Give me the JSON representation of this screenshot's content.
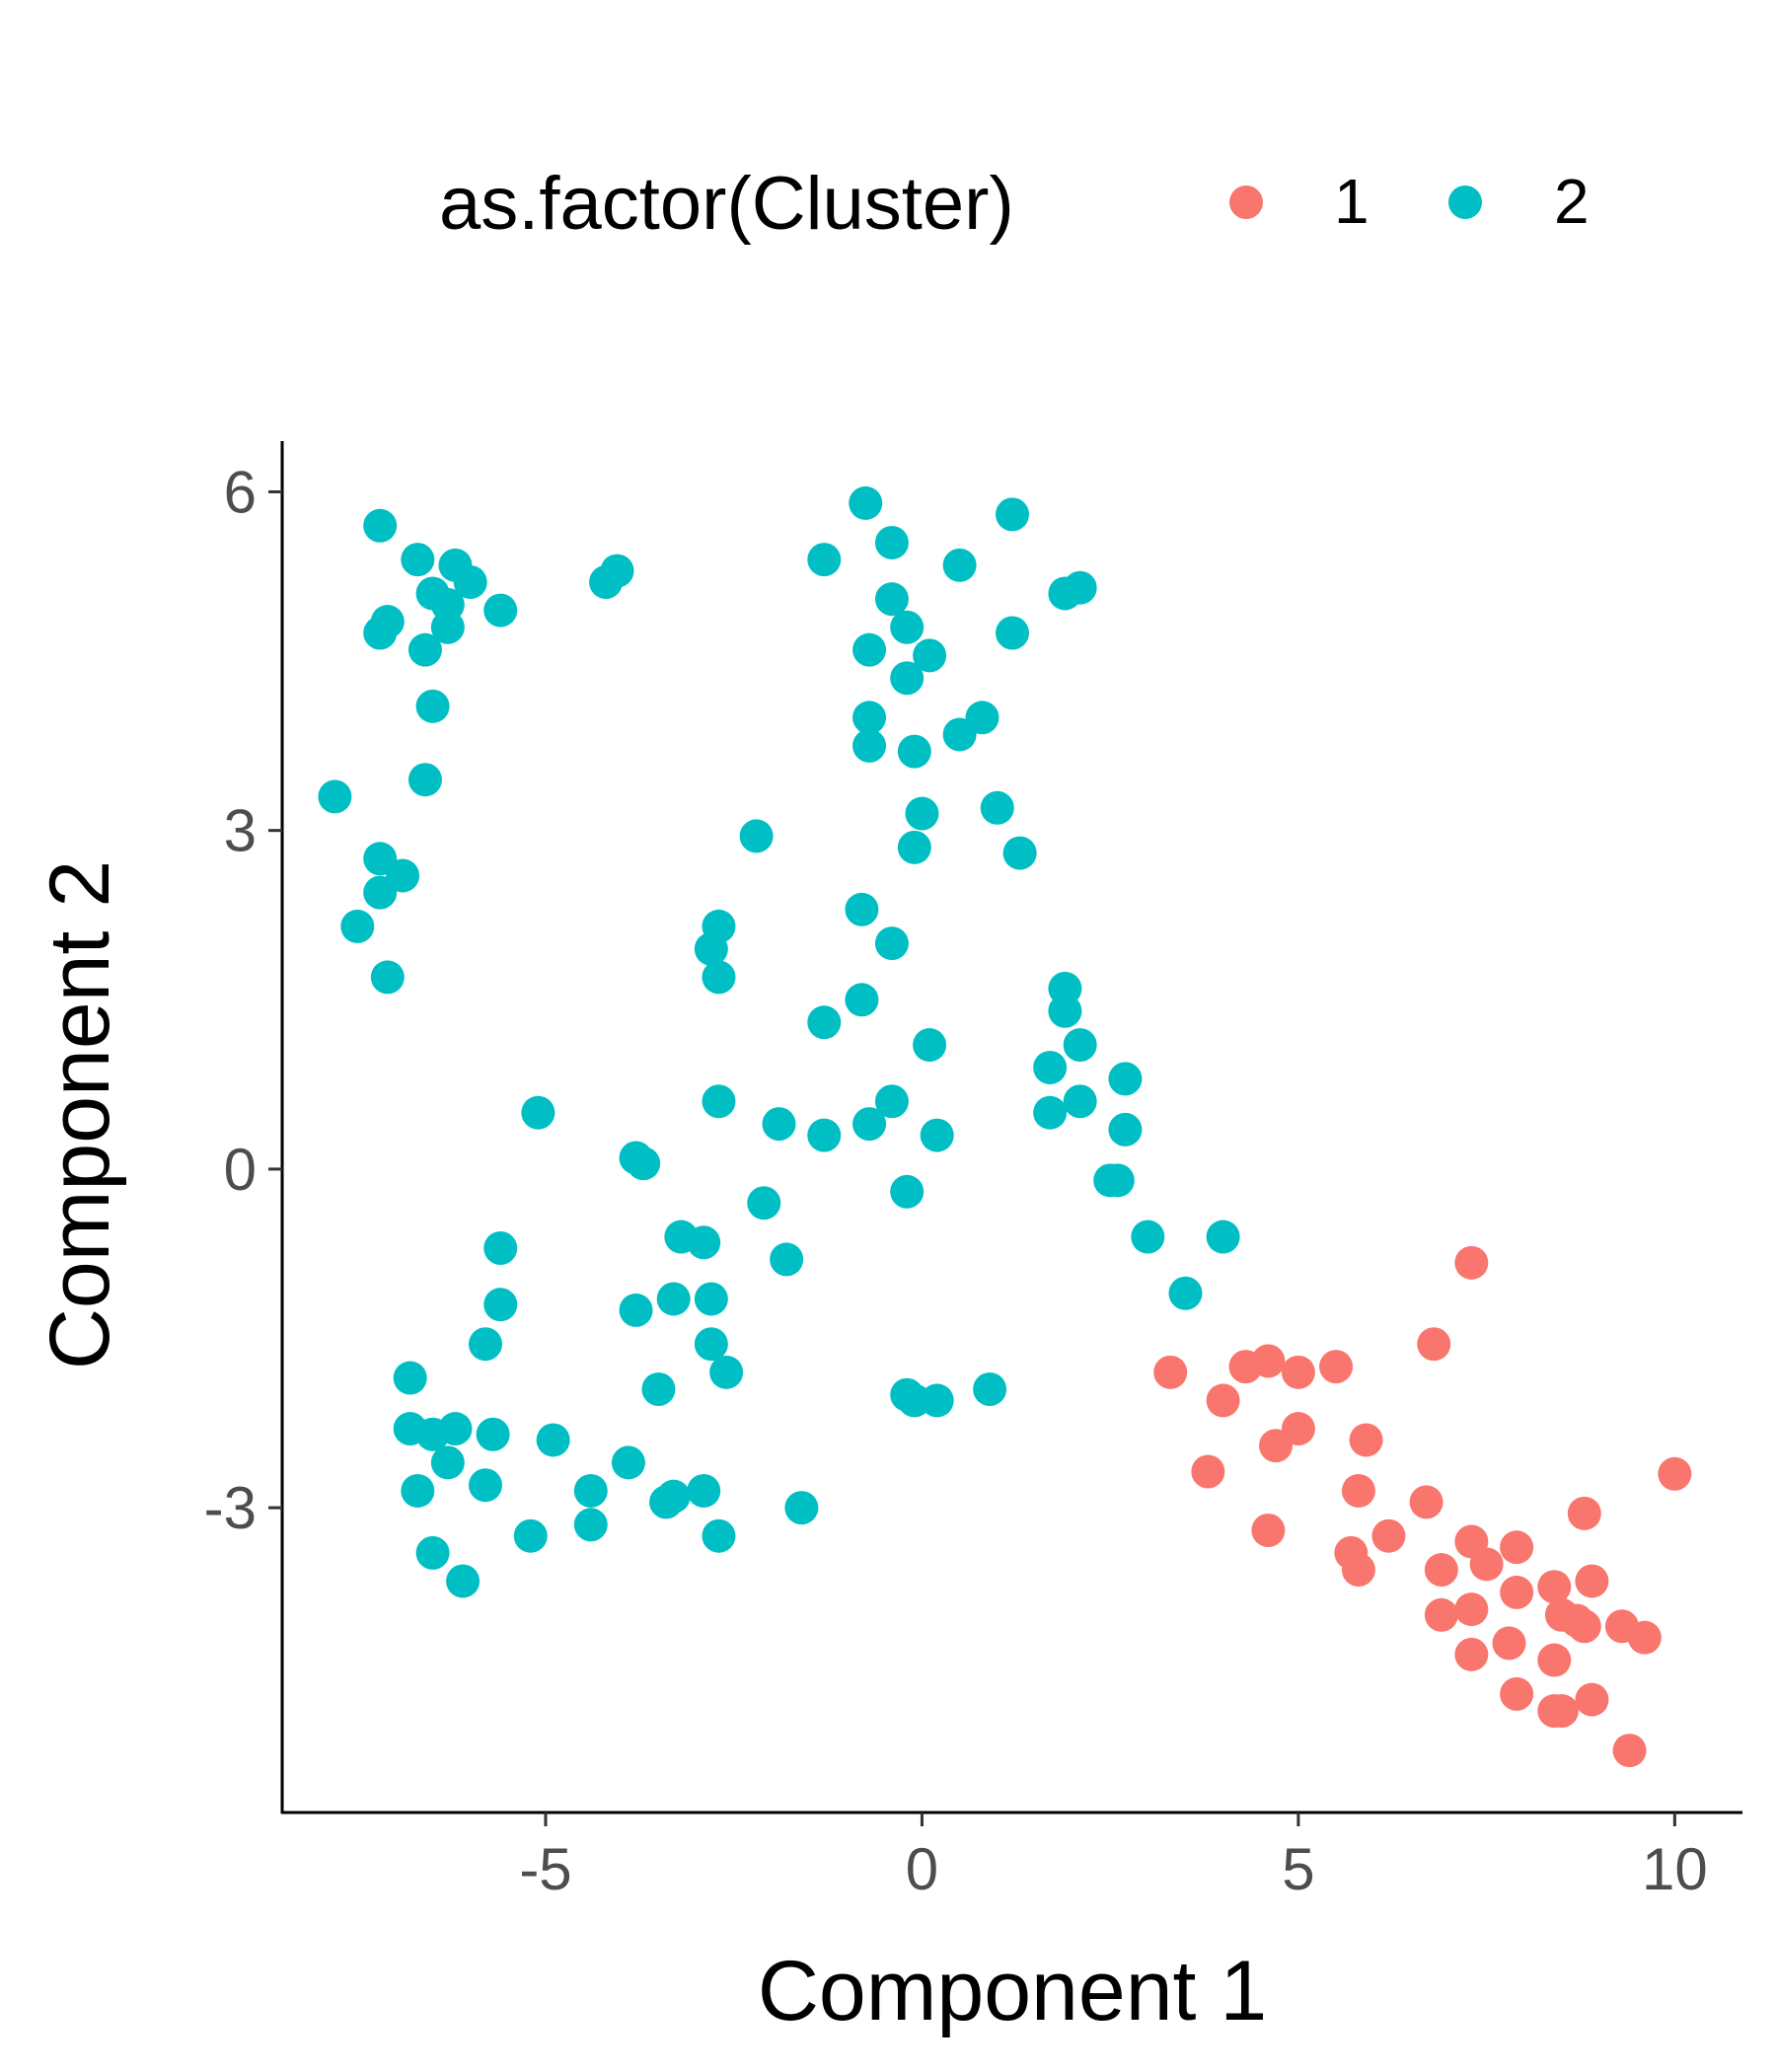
{
  "chart_data": {
    "type": "scatter",
    "title": "",
    "xlabel": "Component 1",
    "ylabel": "Component 2",
    "xlim": [
      -8.5,
      10.9
    ],
    "ylim": [
      -5.7,
      6.45
    ],
    "xticks": [
      -5,
      0,
      5,
      10
    ],
    "yticks": [
      -3,
      0,
      3,
      6
    ],
    "xtick_labels": [
      "-5",
      "0",
      "5",
      "10"
    ],
    "ytick_labels": [
      "-3",
      "0",
      "3",
      "6"
    ],
    "grid": false,
    "legend": {
      "title": "as.factor(Cluster)",
      "placement": "top"
    },
    "series": [
      {
        "name": "1",
        "color": "#F8766D",
        "points": [
          [
            7.3,
            -0.83
          ],
          [
            6.8,
            -1.55
          ],
          [
            3.3,
            -1.8
          ],
          [
            4.3,
            -1.75
          ],
          [
            4.6,
            -1.7
          ],
          [
            5.0,
            -1.8
          ],
          [
            5.5,
            -1.75
          ],
          [
            4.0,
            -2.05
          ],
          [
            5.0,
            -2.3
          ],
          [
            4.7,
            -2.45
          ],
          [
            5.9,
            -2.4
          ],
          [
            3.8,
            -2.68
          ],
          [
            5.8,
            -2.85
          ],
          [
            6.7,
            -2.95
          ],
          [
            4.6,
            -3.2
          ],
          [
            6.2,
            -3.25
          ],
          [
            5.7,
            -3.4
          ],
          [
            5.8,
            -3.55
          ],
          [
            7.3,
            -3.3
          ],
          [
            7.5,
            -3.5
          ],
          [
            7.9,
            -3.35
          ],
          [
            6.9,
            -3.55
          ],
          [
            8.8,
            -3.05
          ],
          [
            10.0,
            -2.7
          ],
          [
            7.9,
            -3.75
          ],
          [
            8.4,
            -3.7
          ],
          [
            8.9,
            -3.65
          ],
          [
            7.3,
            -3.9
          ],
          [
            6.9,
            -3.95
          ],
          [
            8.5,
            -3.95
          ],
          [
            8.7,
            -4.0
          ],
          [
            8.8,
            -4.05
          ],
          [
            9.3,
            -4.05
          ],
          [
            9.6,
            -4.15
          ],
          [
            7.8,
            -4.2
          ],
          [
            7.3,
            -4.3
          ],
          [
            8.4,
            -4.35
          ],
          [
            7.9,
            -4.65
          ],
          [
            8.9,
            -4.7
          ],
          [
            8.4,
            -4.8
          ],
          [
            8.5,
            -4.8
          ],
          [
            9.4,
            -5.15
          ]
        ]
      },
      {
        "name": "2",
        "color": "#00BFC4",
        "points": [
          [
            -7.2,
            5.7
          ],
          [
            -6.7,
            5.4
          ],
          [
            -6.2,
            5.35
          ],
          [
            -6.5,
            5.1
          ],
          [
            -6.0,
            5.2
          ],
          [
            -6.3,
            5.0
          ],
          [
            -7.1,
            4.85
          ],
          [
            -7.2,
            4.75
          ],
          [
            -6.3,
            4.8
          ],
          [
            -5.6,
            4.95
          ],
          [
            -6.6,
            4.6
          ],
          [
            -6.5,
            4.1
          ],
          [
            -6.6,
            3.45
          ],
          [
            -7.8,
            3.3
          ],
          [
            -7.2,
            2.75
          ],
          [
            -6.9,
            2.6
          ],
          [
            -7.2,
            2.45
          ],
          [
            -7.5,
            2.15
          ],
          [
            -7.1,
            1.7
          ],
          [
            -4.2,
            5.2
          ],
          [
            -4.05,
            5.3
          ],
          [
            -1.3,
            5.4
          ],
          [
            -0.75,
            5.9
          ],
          [
            -0.4,
            5.55
          ],
          [
            1.2,
            5.8
          ],
          [
            0.5,
            5.35
          ],
          [
            1.9,
            5.1
          ],
          [
            2.1,
            5.15
          ],
          [
            -0.4,
            5.05
          ],
          [
            -0.2,
            4.8
          ],
          [
            1.2,
            4.75
          ],
          [
            -0.7,
            4.6
          ],
          [
            0.1,
            4.55
          ],
          [
            -0.2,
            4.35
          ],
          [
            -0.7,
            4.0
          ],
          [
            0.8,
            4.0
          ],
          [
            0.5,
            3.85
          ],
          [
            -0.7,
            3.75
          ],
          [
            -0.1,
            3.7
          ],
          [
            1.0,
            3.2
          ],
          [
            0.0,
            3.15
          ],
          [
            -0.1,
            2.85
          ],
          [
            1.3,
            2.8
          ],
          [
            -2.2,
            2.95
          ],
          [
            -0.8,
            2.3
          ],
          [
            -2.7,
            2.15
          ],
          [
            -2.8,
            1.95
          ],
          [
            -0.4,
            2.0
          ],
          [
            -2.7,
            1.7
          ],
          [
            -0.8,
            1.5
          ],
          [
            -1.3,
            1.3
          ],
          [
            1.9,
            1.6
          ],
          [
            1.9,
            1.4
          ],
          [
            0.1,
            1.1
          ],
          [
            2.1,
            1.1
          ],
          [
            1.7,
            0.9
          ],
          [
            2.7,
            0.8
          ],
          [
            -5.1,
            0.5
          ],
          [
            -2.7,
            0.6
          ],
          [
            -0.4,
            0.6
          ],
          [
            2.1,
            0.6
          ],
          [
            1.7,
            0.5
          ],
          [
            -1.9,
            0.4
          ],
          [
            -0.7,
            0.4
          ],
          [
            -1.3,
            0.3
          ],
          [
            0.2,
            0.3
          ],
          [
            2.7,
            0.35
          ],
          [
            -3.8,
            0.1
          ],
          [
            -3.7,
            0.05
          ],
          [
            2.5,
            -0.1
          ],
          [
            2.6,
            -0.1
          ],
          [
            -0.2,
            -0.2
          ],
          [
            -2.1,
            -0.3
          ],
          [
            3.0,
            -0.6
          ],
          [
            4.0,
            -0.6
          ],
          [
            -3.2,
            -0.6
          ],
          [
            -2.9,
            -0.65
          ],
          [
            -5.6,
            -0.7
          ],
          [
            -1.8,
            -0.8
          ],
          [
            3.5,
            -1.1
          ],
          [
            -3.3,
            -1.15
          ],
          [
            -2.8,
            -1.15
          ],
          [
            -3.8,
            -1.25
          ],
          [
            -5.6,
            -1.2
          ],
          [
            -5.8,
            -1.55
          ],
          [
            -2.8,
            -1.55
          ],
          [
            -6.8,
            -1.85
          ],
          [
            -2.6,
            -1.8
          ],
          [
            -3.5,
            -1.95
          ],
          [
            -0.2,
            -2.0
          ],
          [
            -0.1,
            -2.05
          ],
          [
            0.2,
            -2.05
          ],
          [
            0.9,
            -1.95
          ],
          [
            -6.8,
            -2.3
          ],
          [
            -6.5,
            -2.35
          ],
          [
            -6.2,
            -2.3
          ],
          [
            -5.7,
            -2.35
          ],
          [
            -4.9,
            -2.4
          ],
          [
            -6.3,
            -2.6
          ],
          [
            -3.9,
            -2.6
          ],
          [
            -6.7,
            -2.85
          ],
          [
            -5.8,
            -2.8
          ],
          [
            -4.4,
            -2.85
          ],
          [
            -3.4,
            -2.95
          ],
          [
            -3.3,
            -2.9
          ],
          [
            -2.9,
            -2.85
          ],
          [
            -1.6,
            -3.0
          ],
          [
            -4.4,
            -3.15
          ],
          [
            -5.2,
            -3.25
          ],
          [
            -2.7,
            -3.25
          ],
          [
            -6.5,
            -3.4
          ],
          [
            -6.1,
            -3.65
          ]
        ]
      }
    ]
  }
}
